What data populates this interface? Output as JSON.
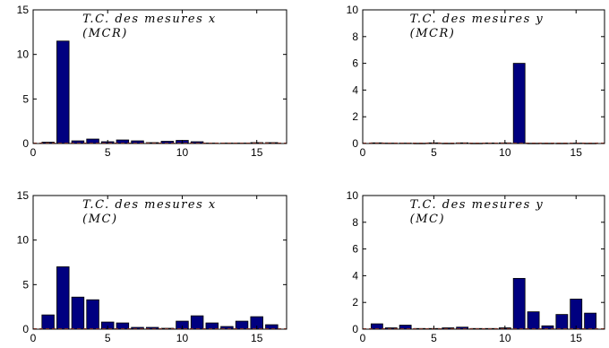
{
  "chart_data": [
    {
      "type": "bar",
      "annotation": [
        "T.C. des mesures x",
        "(MCR)"
      ],
      "x": [
        1,
        2,
        3,
        4,
        5,
        6,
        7,
        8,
        9,
        10,
        11,
        12,
        13,
        14,
        15,
        16
      ],
      "values": [
        0.15,
        11.5,
        0.3,
        0.5,
        0.2,
        0.4,
        0.3,
        0.1,
        0.25,
        0.35,
        0.2,
        0.05,
        0.05,
        0.05,
        0.1,
        0.1
      ],
      "xlim": [
        0,
        17
      ],
      "ylim": [
        0,
        15
      ],
      "xticks": [
        0,
        5,
        10,
        15
      ],
      "yticks": [
        0,
        5,
        10,
        15
      ],
      "xticklabels": [
        "0",
        "5",
        "10",
        "15"
      ],
      "yticklabels": [
        "0",
        "5",
        "10",
        "15"
      ],
      "bar_color": "#000080",
      "reference_line_color": "#e0503c"
    },
    {
      "type": "bar",
      "annotation": [
        "T.C. des mesures y",
        "(MCR)"
      ],
      "x": [
        1,
        2,
        3,
        4,
        5,
        6,
        7,
        8,
        9,
        10,
        11,
        12,
        13,
        14,
        15,
        16
      ],
      "values": [
        0.05,
        0.03,
        0.03,
        0.02,
        0.05,
        0.02,
        0.05,
        0.02,
        0.04,
        0.05,
        6.0,
        0.02,
        0.02,
        0.02,
        0.03,
        0.02
      ],
      "xlim": [
        0,
        17
      ],
      "ylim": [
        0,
        10
      ],
      "xticks": [
        0,
        5,
        10,
        15
      ],
      "yticks": [
        0,
        2,
        4,
        6,
        8,
        10
      ],
      "xticklabels": [
        "0",
        "5",
        "10",
        "15"
      ],
      "yticklabels": [
        "0",
        "2",
        "4",
        "6",
        "8",
        "10"
      ],
      "bar_color": "#000080",
      "reference_line_color": "#e0503c"
    },
    {
      "type": "bar",
      "annotation": [
        "T.C. des mesures x",
        "(MC)"
      ],
      "x": [
        1,
        2,
        3,
        4,
        5,
        6,
        7,
        8,
        9,
        10,
        11,
        12,
        13,
        14,
        15,
        16
      ],
      "values": [
        1.6,
        7.0,
        3.6,
        3.3,
        0.8,
        0.7,
        0.2,
        0.2,
        0.1,
        0.9,
        1.5,
        0.7,
        0.3,
        0.9,
        1.4,
        0.5
      ],
      "xlim": [
        0,
        17
      ],
      "ylim": [
        0,
        15
      ],
      "xticks": [
        0,
        5,
        10,
        15
      ],
      "yticks": [
        0,
        5,
        10,
        15
      ],
      "xticklabels": [
        "0",
        "5",
        "10",
        "15"
      ],
      "yticklabels": [
        "0",
        "5",
        "10",
        "15"
      ],
      "bar_color": "#000080",
      "reference_line_color": "#e0503c"
    },
    {
      "type": "bar",
      "annotation": [
        "T.C. des mesures y",
        "(MC)"
      ],
      "x": [
        1,
        2,
        3,
        4,
        5,
        6,
        7,
        8,
        9,
        10,
        11,
        12,
        13,
        14,
        15,
        16
      ],
      "values": [
        0.4,
        0.1,
        0.3,
        0.05,
        0.05,
        0.1,
        0.15,
        0.05,
        0.05,
        0.1,
        3.8,
        1.3,
        0.25,
        1.1,
        2.25,
        1.2
      ],
      "xlim": [
        0,
        17
      ],
      "ylim": [
        0,
        10
      ],
      "xticks": [
        0,
        5,
        10,
        15
      ],
      "yticks": [
        0,
        2,
        4,
        6,
        8,
        10
      ],
      "xticklabels": [
        "0",
        "5",
        "10",
        "15"
      ],
      "yticklabels": [
        "0",
        "2",
        "4",
        "6",
        "8",
        "10"
      ],
      "bar_color": "#000080",
      "reference_line_color": "#e0503c"
    }
  ]
}
